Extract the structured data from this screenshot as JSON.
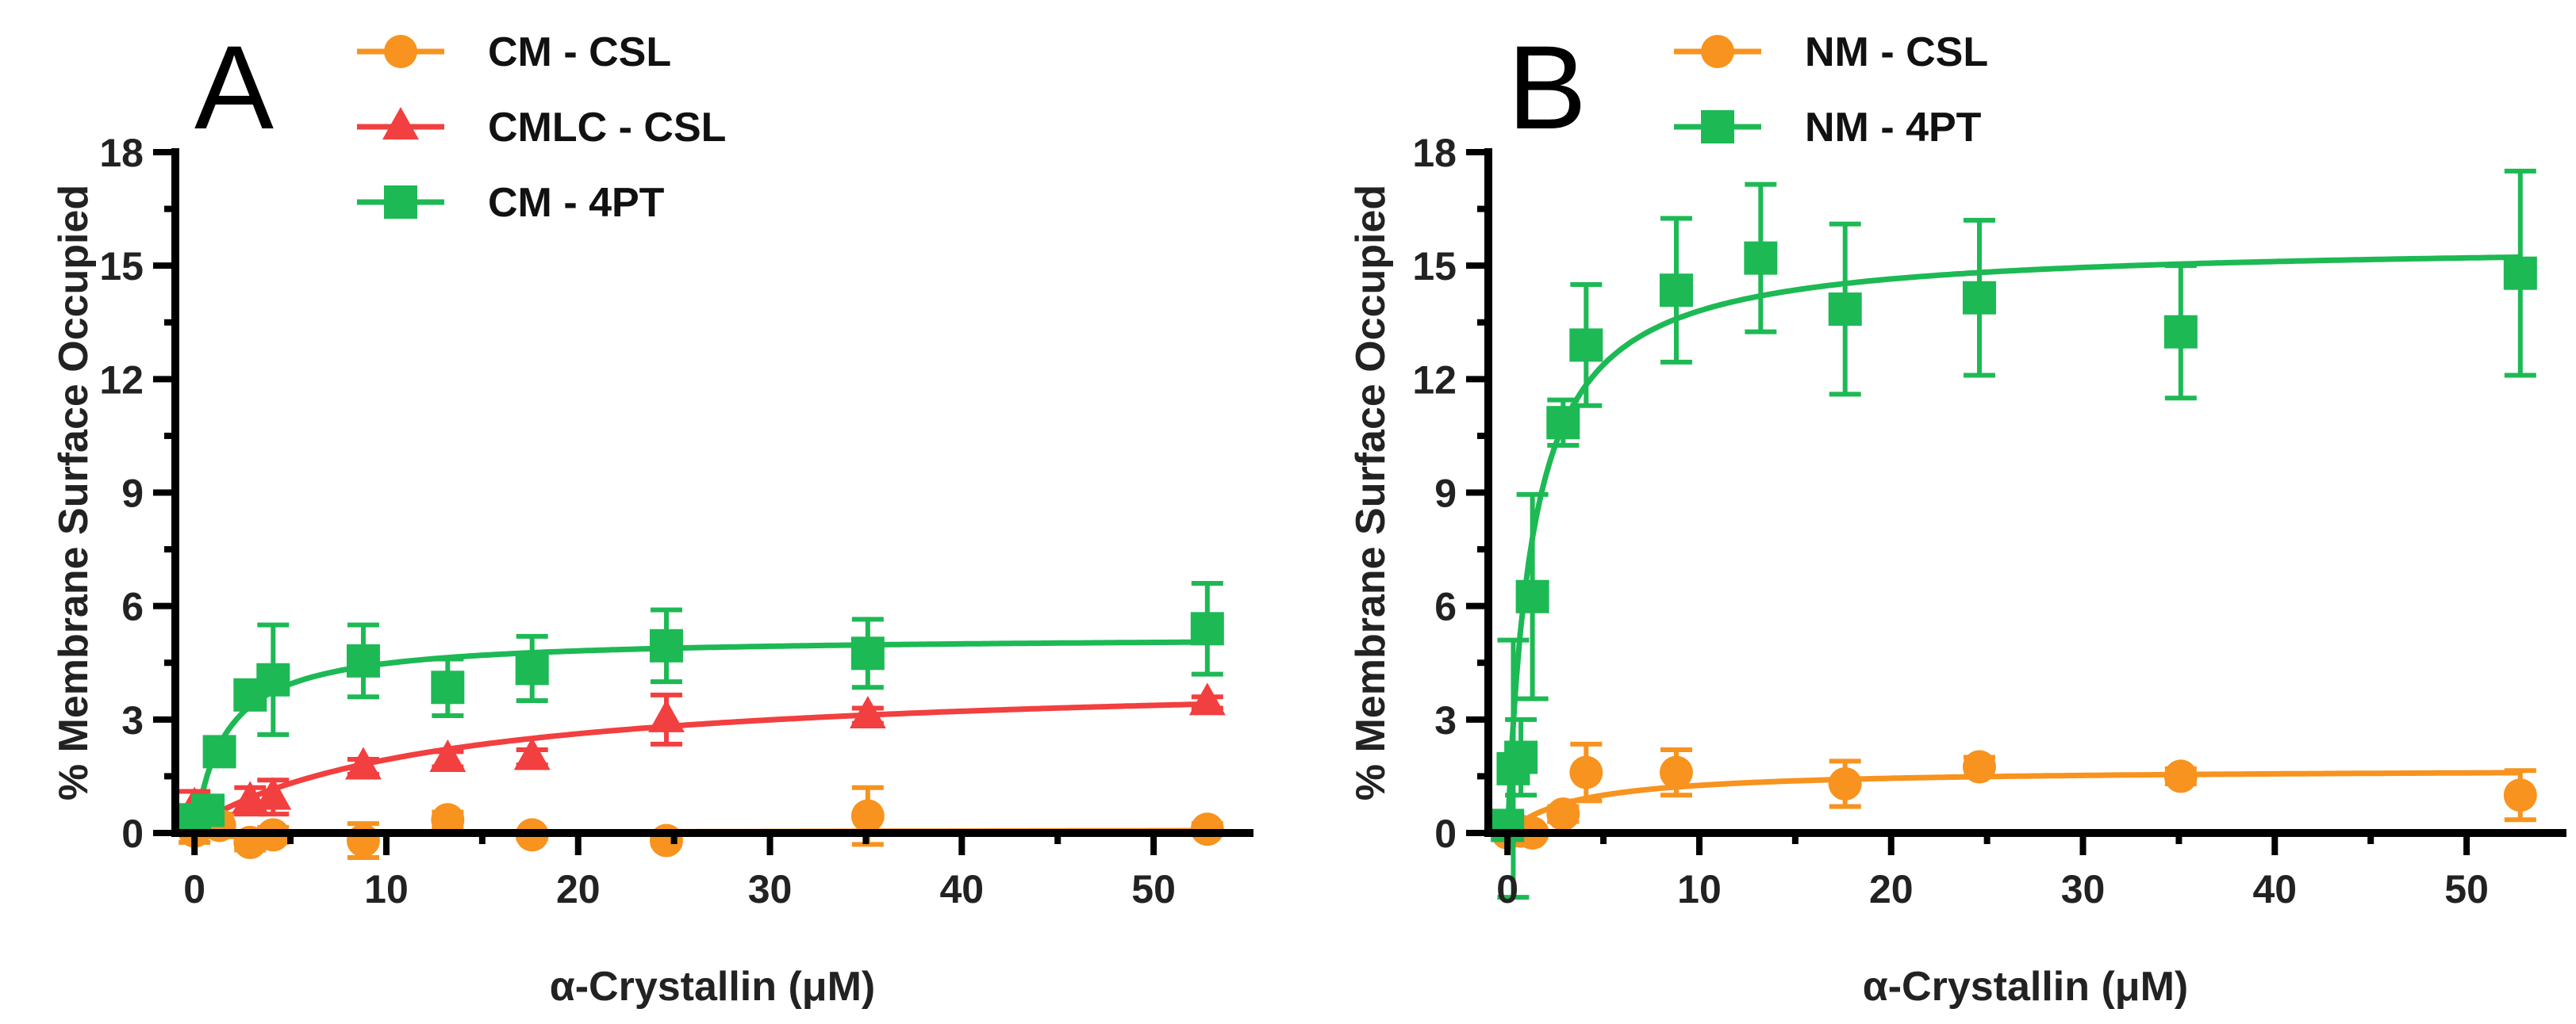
{
  "chart_data": [
    {
      "type": "scatter",
      "panel": "A",
      "xlabel": "α-Crystallin (μM)",
      "ylabel": "% Membrane Surface Occupied",
      "xlim": [
        -1,
        55
      ],
      "ylim": [
        0,
        18
      ],
      "xticks": [
        "0",
        "10",
        "20",
        "30",
        "40",
        "50"
      ],
      "yticks": [
        "0",
        "3",
        "6",
        "9",
        "12",
        "15",
        "18"
      ],
      "legend_position": "top",
      "series": [
        {
          "name": "CM - CSL",
          "color": "#f7931e",
          "marker": "circle",
          "x": [
            0,
            1.3,
            2.9,
            4.1,
            8.8,
            13.2,
            17.6,
            24.6,
            35.1,
            52.8
          ],
          "y": [
            0.05,
            0.2,
            -0.25,
            -0.05,
            -0.2,
            0.35,
            -0.05,
            -0.2,
            0.45,
            0.1
          ],
          "err": [
            0.3,
            0.3,
            0.2,
            0.2,
            0.45,
            0.2,
            0.1,
            0.1,
            0.75,
            0.15
          ],
          "fit": {
            "model": "hyperbolic",
            "bmax": 0.3,
            "kd": 200
          }
        },
        {
          "name": "CMLC - CSL",
          "color": "#f23f3f",
          "marker": "triangle",
          "x": [
            0,
            2.9,
            4.1,
            8.8,
            13.2,
            17.6,
            24.6,
            35.1,
            52.8
          ],
          "y": [
            0.7,
            0.85,
            0.95,
            1.75,
            1.95,
            2.0,
            3.0,
            3.1,
            3.45
          ],
          "err": [
            0.4,
            0.35,
            0.45,
            0.2,
            0.2,
            0.2,
            0.65,
            0.2,
            0.15
          ],
          "fit": {
            "model": "hyperbolic",
            "bmax": 4.2,
            "kd": 13,
            "offset": 0.2
          }
        },
        {
          "name": "CM - 4PT",
          "color": "#1db954",
          "marker": "square",
          "x": [
            0,
            0.7,
            1.3,
            2.9,
            4.1,
            8.8,
            13.2,
            17.6,
            24.6,
            35.1,
            52.8
          ],
          "y": [
            0.35,
            0.6,
            2.15,
            3.65,
            4.05,
            4.55,
            3.85,
            4.35,
            4.95,
            4.75,
            5.4
          ],
          "err": [
            0.3,
            0.3,
            0.3,
            0.35,
            1.45,
            0.95,
            0.75,
            0.85,
            0.95,
            0.9,
            1.2
          ],
          "fit": {
            "model": "hyperbolic",
            "bmax": 5.2,
            "kd": 1.6
          }
        }
      ]
    },
    {
      "type": "scatter",
      "panel": "B",
      "xlabel": "α-Crystallin (μM)",
      "ylabel": "% Membrane Surface Occupied",
      "xlim": [
        -1,
        55
      ],
      "ylim": [
        0,
        18
      ],
      "xticks": [
        "0",
        "10",
        "20",
        "30",
        "40",
        "50"
      ],
      "yticks": [
        "0",
        "3",
        "6",
        "9",
        "12",
        "15",
        "18"
      ],
      "legend_position": "top",
      "series": [
        {
          "name": "NM - CSL",
          "color": "#f7931e",
          "marker": "circle",
          "x": [
            0,
            0.7,
            1.3,
            2.9,
            4.1,
            8.8,
            17.6,
            24.6,
            35.1,
            52.8
          ],
          "y": [
            0.0,
            0.05,
            0.0,
            0.5,
            1.6,
            1.6,
            1.3,
            1.75,
            1.5,
            1.0
          ],
          "err": [
            0.1,
            0.1,
            0.1,
            0.2,
            0.75,
            0.6,
            0.6,
            0.25,
            0.2,
            0.65
          ],
          "fit": {
            "model": "hyperbolic",
            "bmax": 1.7,
            "kd": 3.5
          }
        },
        {
          "name": "NM - 4PT",
          "color": "#1db954",
          "marker": "square",
          "x": [
            0,
            0.3,
            0.7,
            1.3,
            2.9,
            4.1,
            8.8,
            13.2,
            17.6,
            24.6,
            35.1,
            52.8
          ],
          "y": [
            0.2,
            1.7,
            2.0,
            6.25,
            10.85,
            12.9,
            14.35,
            15.2,
            13.85,
            14.15,
            13.25,
            14.8
          ],
          "err": [
            0.3,
            3.4,
            1.0,
            2.7,
            0.6,
            1.6,
            1.9,
            1.95,
            2.25,
            2.05,
            1.75,
            2.7
          ],
          "fit": {
            "model": "hyperbolic",
            "bmax": 15.6,
            "kd": 1.3
          }
        }
      ]
    }
  ],
  "panels": [
    {
      "letter": "A",
      "legend": [
        "CM - CSL",
        "CMLC - CSL",
        "CM - 4PT"
      ]
    },
    {
      "letter": "B",
      "legend": [
        "NM - CSL",
        "NM - 4PT"
      ]
    }
  ]
}
